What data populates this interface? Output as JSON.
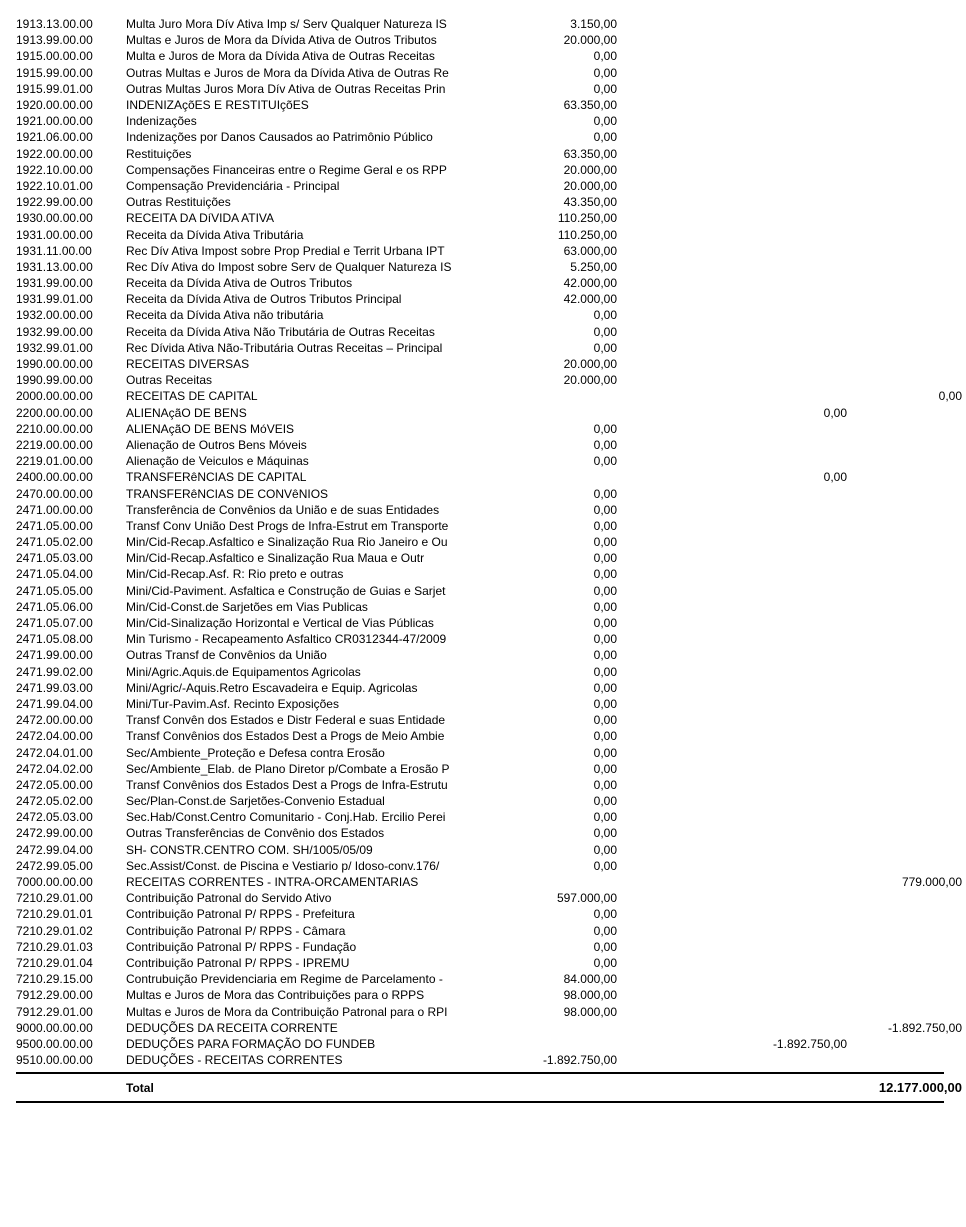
{
  "total_label": "Total",
  "total_value": "12.177.000,00",
  "rows": [
    {
      "code": "1913.13.00.00",
      "desc": "Multa Juro Mora Dív Ativa Imp s/ Serv Qualquer Natureza IS",
      "c1": "3.150,00",
      "c2": "",
      "c3": "",
      "c4": ""
    },
    {
      "code": "1913.99.00.00",
      "desc": "Multas e Juros de Mora da Dívida Ativa de Outros Tributos",
      "c1": "20.000,00",
      "c2": "",
      "c3": "",
      "c4": ""
    },
    {
      "code": "1915.00.00.00",
      "desc": "Multa e Juros de Mora da Dívida Ativa de Outras Receitas",
      "c1": "0,00",
      "c2": "",
      "c3": "",
      "c4": ""
    },
    {
      "code": "1915.99.00.00",
      "desc": "Outras Multas e Juros de Mora da Dívida Ativa de Outras Re",
      "c1": "0,00",
      "c2": "",
      "c3": "",
      "c4": ""
    },
    {
      "code": "1915.99.01.00",
      "desc": "Outras Multas Juros Mora Dív Ativa de Outras Receitas Prin",
      "c1": "0,00",
      "c2": "",
      "c3": "",
      "c4": ""
    },
    {
      "code": "1920.00.00.00",
      "desc": "INDENIZAçõES E RESTITUIçõES",
      "c1": "63.350,00",
      "c2": "",
      "c3": "",
      "c4": ""
    },
    {
      "code": "1921.00.00.00",
      "desc": "Indenizações",
      "c1": "0,00",
      "c2": "",
      "c3": "",
      "c4": ""
    },
    {
      "code": "1921.06.00.00",
      "desc": "Indenizações por Danos Causados ao Patrimônio Público",
      "c1": "0,00",
      "c2": "",
      "c3": "",
      "c4": ""
    },
    {
      "code": "1922.00.00.00",
      "desc": "Restituições",
      "c1": "63.350,00",
      "c2": "",
      "c3": "",
      "c4": ""
    },
    {
      "code": "1922.10.00.00",
      "desc": "Compensações Financeiras entre o Regime Geral e os RPP",
      "c1": "20.000,00",
      "c2": "",
      "c3": "",
      "c4": ""
    },
    {
      "code": "1922.10.01.00",
      "desc": "Compensação Previdenciária - Principal",
      "c1": "20.000,00",
      "c2": "",
      "c3": "",
      "c4": ""
    },
    {
      "code": "1922.99.00.00",
      "desc": "Outras Restituições",
      "c1": "43.350,00",
      "c2": "",
      "c3": "",
      "c4": ""
    },
    {
      "code": "1930.00.00.00",
      "desc": "RECEITA DA DíVIDA ATIVA",
      "c1": "110.250,00",
      "c2": "",
      "c3": "",
      "c4": ""
    },
    {
      "code": "1931.00.00.00",
      "desc": "Receita da Dívida Ativa Tributária",
      "c1": "110.250,00",
      "c2": "",
      "c3": "",
      "c4": ""
    },
    {
      "code": "1931.11.00.00",
      "desc": "Rec Dív Ativa Impost sobre Prop Predial e Territ Urbana IPT",
      "c1": "63.000,00",
      "c2": "",
      "c3": "",
      "c4": ""
    },
    {
      "code": "1931.13.00.00",
      "desc": "Rec Dív Ativa do Impost sobre Serv de Qualquer Natureza IS",
      "c1": "5.250,00",
      "c2": "",
      "c3": "",
      "c4": ""
    },
    {
      "code": "1931.99.00.00",
      "desc": "Receita da Dívida Ativa de Outros Tributos",
      "c1": "42.000,00",
      "c2": "",
      "c3": "",
      "c4": ""
    },
    {
      "code": "1931.99.01.00",
      "desc": "Receita da Dívida Ativa de Outros Tributos Principal",
      "c1": "42.000,00",
      "c2": "",
      "c3": "",
      "c4": ""
    },
    {
      "code": "1932.00.00.00",
      "desc": "Receita da Dívida Ativa não tributária",
      "c1": "0,00",
      "c2": "",
      "c3": "",
      "c4": ""
    },
    {
      "code": "1932.99.00.00",
      "desc": "Receita da Dívida Ativa Não Tributária de Outras Receitas",
      "c1": "0,00",
      "c2": "",
      "c3": "",
      "c4": ""
    },
    {
      "code": "1932.99.01.00",
      "desc": "Rec Dívida Ativa Não-Tributária Outras Receitas – Principal",
      "c1": "0,00",
      "c2": "",
      "c3": "",
      "c4": ""
    },
    {
      "code": "1990.00.00.00",
      "desc": "RECEITAS DIVERSAS",
      "c1": "20.000,00",
      "c2": "",
      "c3": "",
      "c4": ""
    },
    {
      "code": "1990.99.00.00",
      "desc": "Outras Receitas",
      "c1": "20.000,00",
      "c2": "",
      "c3": "",
      "c4": ""
    },
    {
      "code": "2000.00.00.00",
      "desc": "RECEITAS DE CAPITAL",
      "c1": "",
      "c2": "",
      "c3": "",
      "c4": "0,00"
    },
    {
      "code": "2200.00.00.00",
      "desc": "ALIENAçãO DE BENS",
      "c1": "",
      "c2": "",
      "c3": "0,00",
      "c4": ""
    },
    {
      "code": "2210.00.00.00",
      "desc": "ALIENAçãO DE BENS MóVEIS",
      "c1": "0,00",
      "c2": "",
      "c3": "",
      "c4": ""
    },
    {
      "code": "2219.00.00.00",
      "desc": "Alienação de Outros Bens Móveis",
      "c1": "0,00",
      "c2": "",
      "c3": "",
      "c4": ""
    },
    {
      "code": "2219.01.00.00",
      "desc": "Alienação de Veiculos e Máquinas",
      "c1": "0,00",
      "c2": "",
      "c3": "",
      "c4": ""
    },
    {
      "code": "2400.00.00.00",
      "desc": "TRANSFERêNCIAS DE CAPITAL",
      "c1": "",
      "c2": "",
      "c3": "0,00",
      "c4": ""
    },
    {
      "code": "2470.00.00.00",
      "desc": "TRANSFERêNCIAS DE CONVêNIOS",
      "c1": "0,00",
      "c2": "",
      "c3": "",
      "c4": ""
    },
    {
      "code": "2471.00.00.00",
      "desc": "Transferência de Convênios da União e de suas Entidades",
      "c1": "0,00",
      "c2": "",
      "c3": "",
      "c4": ""
    },
    {
      "code": "2471.05.00.00",
      "desc": "Transf Conv União Dest Progs de Infra-Estrut em Transporte",
      "c1": "0,00",
      "c2": "",
      "c3": "",
      "c4": ""
    },
    {
      "code": "2471.05.02.00",
      "desc": "Min/Cid-Recap.Asfaltico e Sinalização Rua Rio Janeiro e Ou",
      "c1": "0,00",
      "c2": "",
      "c3": "",
      "c4": ""
    },
    {
      "code": "2471.05.03.00",
      "desc": "Min/Cid-Recap.Asfaltico e Sinalização Rua Maua e Outr",
      "c1": "0,00",
      "c2": "",
      "c3": "",
      "c4": ""
    },
    {
      "code": "2471.05.04.00",
      "desc": "Min/Cid-Recap.Asf. R: Rio preto e outras",
      "c1": "0,00",
      "c2": "",
      "c3": "",
      "c4": ""
    },
    {
      "code": "2471.05.05.00",
      "desc": "Mini/Cid-Paviment. Asfaltica e Construção de Guias e Sarjet",
      "c1": "0,00",
      "c2": "",
      "c3": "",
      "c4": ""
    },
    {
      "code": "2471.05.06.00",
      "desc": "Min/Cid-Const.de Sarjetões em Vias Publicas",
      "c1": "0,00",
      "c2": "",
      "c3": "",
      "c4": ""
    },
    {
      "code": "2471.05.07.00",
      "desc": "Min/Cid-Sinalização Horizontal e Vertical de Vias Públicas",
      "c1": "0,00",
      "c2": "",
      "c3": "",
      "c4": ""
    },
    {
      "code": "2471.05.08.00",
      "desc": "Min Turismo - Recapeamento Asfaltico CR0312344-47/2009",
      "c1": "0,00",
      "c2": "",
      "c3": "",
      "c4": ""
    },
    {
      "code": "2471.99.00.00",
      "desc": "Outras Transf de Convênios da União",
      "c1": "0,00",
      "c2": "",
      "c3": "",
      "c4": ""
    },
    {
      "code": "2471.99.02.00",
      "desc": "Mini/Agric.Aquis.de Equipamentos Agricolas",
      "c1": "0,00",
      "c2": "",
      "c3": "",
      "c4": ""
    },
    {
      "code": "2471.99.03.00",
      "desc": "Mini/Agric/-Aquis.Retro Escavadeira e  Equip. Agricolas",
      "c1": "0,00",
      "c2": "",
      "c3": "",
      "c4": ""
    },
    {
      "code": "2471.99.04.00",
      "desc": "Mini/Tur-Pavim.Asf. Recinto Exposições",
      "c1": "0,00",
      "c2": "",
      "c3": "",
      "c4": ""
    },
    {
      "code": "2472.00.00.00",
      "desc": "Transf Convên dos Estados e Distr Federal e suas Entidade",
      "c1": "0,00",
      "c2": "",
      "c3": "",
      "c4": ""
    },
    {
      "code": "2472.04.00.00",
      "desc": "Transf Convênios dos Estados Dest a Progs de Meio Ambie",
      "c1": "0,00",
      "c2": "",
      "c3": "",
      "c4": ""
    },
    {
      "code": "2472.04.01.00",
      "desc": "Sec/Ambiente_Proteção e Defesa contra Erosão",
      "c1": "0,00",
      "c2": "",
      "c3": "",
      "c4": ""
    },
    {
      "code": "2472.04.02.00",
      "desc": "Sec/Ambiente_Elab. de Plano Diretor p/Combate a Erosão P",
      "c1": "0,00",
      "c2": "",
      "c3": "",
      "c4": ""
    },
    {
      "code": "2472.05.00.00",
      "desc": "Transf Convênios dos Estados Dest a Progs de Infra-Estrutu",
      "c1": "0,00",
      "c2": "",
      "c3": "",
      "c4": ""
    },
    {
      "code": "2472.05.02.00",
      "desc": "Sec/Plan-Const.de Sarjetões-Convenio Estadual",
      "c1": "0,00",
      "c2": "",
      "c3": "",
      "c4": ""
    },
    {
      "code": "2472.05.03.00",
      "desc": "Sec.Hab/Const.Centro Comunitario - Conj.Hab. Ercilio Perei",
      "c1": "0,00",
      "c2": "",
      "c3": "",
      "c4": ""
    },
    {
      "code": "2472.99.00.00",
      "desc": "Outras Transferências de Convênio dos Estados",
      "c1": "0,00",
      "c2": "",
      "c3": "",
      "c4": ""
    },
    {
      "code": "2472.99.04.00",
      "desc": "SH- CONSTR.CENTRO COM. SH/1005/05/09",
      "c1": "0,00",
      "c2": "",
      "c3": "",
      "c4": ""
    },
    {
      "code": "2472.99.05.00",
      "desc": "Sec.Assist/Const. de Piscina e Vestiario p/ Idoso-conv.176/",
      "c1": "0,00",
      "c2": "",
      "c3": "",
      "c4": ""
    },
    {
      "code": "7000.00.00.00",
      "desc": "RECEITAS CORRENTES - INTRA-ORCAMENTARIAS",
      "c1": "",
      "c2": "",
      "c3": "",
      "c4": "779.000,00"
    },
    {
      "code": "7210.29.01.00",
      "desc": "Contribuição Patronal do Servido Ativo",
      "c1": "597.000,00",
      "c2": "",
      "c3": "",
      "c4": ""
    },
    {
      "code": "7210.29.01.01",
      "desc": "Contribuição Patronal P/ RPPS - Prefeitura",
      "c1": "0,00",
      "c2": "",
      "c3": "",
      "c4": ""
    },
    {
      "code": "7210.29.01.02",
      "desc": "Contribuição Patronal P/ RPPS - Câmara",
      "c1": "0,00",
      "c2": "",
      "c3": "",
      "c4": ""
    },
    {
      "code": "7210.29.01.03",
      "desc": "Contribuição Patronal P/ RPPS - Fundação",
      "c1": "0,00",
      "c2": "",
      "c3": "",
      "c4": ""
    },
    {
      "code": "7210.29.01.04",
      "desc": "Contribuição Patronal P/ RPPS - IPREMU",
      "c1": "0,00",
      "c2": "",
      "c3": "",
      "c4": ""
    },
    {
      "code": "7210.29.15.00",
      "desc": "Contrubuição Previdenciaria em Regime de Parcelamento -",
      "c1": "84.000,00",
      "c2": "",
      "c3": "",
      "c4": ""
    },
    {
      "code": "7912.29.00.00",
      "desc": "Multas e Juros de Mora das Contribuições para o RPPS",
      "c1": "98.000,00",
      "c2": "",
      "c3": "",
      "c4": ""
    },
    {
      "code": "7912.29.01.00",
      "desc": "Multas e Juros de Mora da Contribuição Patronal para o RPI",
      "c1": "98.000,00",
      "c2": "",
      "c3": "",
      "c4": ""
    },
    {
      "code": "9000.00.00.00",
      "desc": "DEDUÇÕES DA RECEITA CORRENTE",
      "c1": "",
      "c2": "",
      "c3": "",
      "c4": "-1.892.750,00"
    },
    {
      "code": "9500.00.00.00",
      "desc": "DEDUÇÕES PARA FORMAÇÃO DO FUNDEB",
      "c1": "",
      "c2": "",
      "c3": "-1.892.750,00",
      "c4": ""
    },
    {
      "code": "9510.00.00.00",
      "desc": "DEDUÇÕES - RECEITAS CORRENTES",
      "c1": "-1.892.750,00",
      "c2": "",
      "c3": "",
      "c4": ""
    }
  ]
}
